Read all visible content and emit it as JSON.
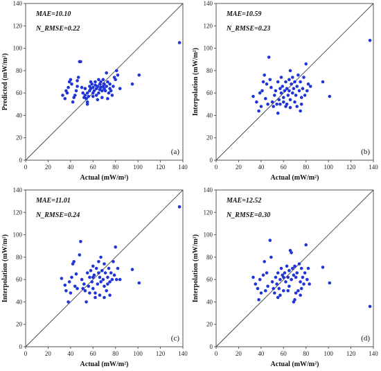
{
  "chart_data": [
    {
      "type": "scatter",
      "panel_label": "(a)",
      "xlabel": "Actual (mW/m²)",
      "ylabel": "Predicted (mW/m²)",
      "annotations": [
        "MAE=10.10",
        "N_RMSE=0.22"
      ],
      "xlim": [
        0,
        140
      ],
      "ylim": [
        0,
        140
      ],
      "xticks": [
        0,
        20,
        40,
        60,
        80,
        100,
        120,
        140
      ],
      "yticks": [
        0,
        20,
        40,
        60,
        80,
        100,
        120,
        140
      ],
      "reference_line": "y=x",
      "marker_color": "#1f35d6",
      "points": [
        [
          33,
          58
        ],
        [
          35,
          55
        ],
        [
          36,
          62
        ],
        [
          37,
          60
        ],
        [
          38,
          65
        ],
        [
          39,
          70
        ],
        [
          40,
          72
        ],
        [
          41,
          68
        ],
        [
          42,
          52
        ],
        [
          43,
          56
        ],
        [
          44,
          58
        ],
        [
          45,
          62
        ],
        [
          46,
          66
        ],
        [
          46,
          71
        ],
        [
          47,
          74
        ],
        [
          48,
          88
        ],
        [
          49,
          88
        ],
        [
          50,
          65
        ],
        [
          51,
          60
        ],
        [
          52,
          56
        ],
        [
          53,
          58
        ],
        [
          53,
          64
        ],
        [
          54,
          55
        ],
        [
          55,
          52
        ],
        [
          55,
          60
        ],
        [
          56,
          57
        ],
        [
          57,
          62
        ],
        [
          57,
          66
        ],
        [
          58,
          64
        ],
        [
          59,
          68
        ],
        [
          60,
          60
        ],
        [
          60,
          65
        ],
        [
          61,
          62
        ],
        [
          62,
          67
        ],
        [
          62,
          70
        ],
        [
          63,
          58
        ],
        [
          63,
          64
        ],
        [
          64,
          66
        ],
        [
          65,
          72
        ],
        [
          65,
          60
        ],
        [
          66,
          68
        ],
        [
          66,
          63
        ],
        [
          67,
          70
        ],
        [
          67,
          65
        ],
        [
          68,
          62
        ],
        [
          69,
          66
        ],
        [
          69,
          72
        ],
        [
          70,
          64
        ],
        [
          70,
          68
        ],
        [
          71,
          62
        ],
        [
          72,
          78
        ],
        [
          72,
          66
        ],
        [
          73,
          70
        ],
        [
          74,
          60
        ],
        [
          75,
          64
        ],
        [
          75,
          68
        ],
        [
          76,
          62
        ],
        [
          77,
          58
        ],
        [
          78,
          66
        ],
        [
          79,
          74
        ],
        [
          80,
          72
        ],
        [
          81,
          80
        ],
        [
          82,
          76
        ],
        [
          84,
          64
        ],
        [
          55,
          50
        ],
        [
          60,
          57
        ],
        [
          64,
          54
        ],
        [
          68,
          56
        ],
        [
          73,
          55
        ],
        [
          58,
          70
        ],
        [
          95,
          68
        ],
        [
          101,
          76
        ],
        [
          137,
          105
        ]
      ]
    },
    {
      "type": "scatter",
      "panel_label": "(b)",
      "xlabel": "Actual (mW/m²)",
      "ylabel": "Interpolation (mW/m²)",
      "annotations": [
        "MAE=10.59",
        "N_RMSE=0.23"
      ],
      "xlim": [
        0,
        140
      ],
      "ylim": [
        0,
        140
      ],
      "xticks": [
        0,
        20,
        40,
        60,
        80,
        100,
        120,
        140
      ],
      "yticks": [
        0,
        20,
        40,
        60,
        80,
        100,
        120,
        140
      ],
      "reference_line": "y=x",
      "marker_color": "#1f35d6",
      "points": [
        [
          33,
          57
        ],
        [
          36,
          52
        ],
        [
          38,
          44
        ],
        [
          39,
          60
        ],
        [
          40,
          48
        ],
        [
          41,
          62
        ],
        [
          42,
          70
        ],
        [
          43,
          76
        ],
        [
          44,
          55
        ],
        [
          45,
          68
        ],
        [
          46,
          50
        ],
        [
          47,
          92
        ],
        [
          48,
          72
        ],
        [
          49,
          65
        ],
        [
          50,
          52
        ],
        [
          51,
          48
        ],
        [
          52,
          58
        ],
        [
          53,
          62
        ],
        [
          54,
          50
        ],
        [
          55,
          42
        ],
        [
          55,
          70
        ],
        [
          56,
          54
        ],
        [
          57,
          64
        ],
        [
          58,
          60
        ],
        [
          58,
          74
        ],
        [
          59,
          66
        ],
        [
          60,
          56
        ],
        [
          61,
          62
        ],
        [
          62,
          48
        ],
        [
          62,
          70
        ],
        [
          63,
          64
        ],
        [
          64,
          58
        ],
        [
          65,
          72
        ],
        [
          65,
          62
        ],
        [
          66,
          80
        ],
        [
          66,
          54
        ],
        [
          67,
          68
        ],
        [
          68,
          60
        ],
        [
          68,
          74
        ],
        [
          69,
          64
        ],
        [
          70,
          52
        ],
        [
          70,
          70
        ],
        [
          71,
          58
        ],
        [
          72,
          66
        ],
        [
          73,
          76
        ],
        [
          74,
          62
        ],
        [
          75,
          44
        ],
        [
          75,
          70
        ],
        [
          76,
          56
        ],
        [
          77,
          64
        ],
        [
          78,
          74
        ],
        [
          79,
          58
        ],
        [
          80,
          86
        ],
        [
          81,
          62
        ],
        [
          82,
          68
        ],
        [
          84,
          66
        ],
        [
          57,
          50
        ],
        [
          60,
          52
        ],
        [
          63,
          50
        ],
        [
          66,
          47
        ],
        [
          72,
          48
        ],
        [
          76,
          50
        ],
        [
          95,
          70
        ],
        [
          101,
          57
        ],
        [
          137,
          107
        ]
      ]
    },
    {
      "type": "scatter",
      "panel_label": "(c)",
      "xlabel": "Actual (mW/m²)",
      "ylabel": "Interpolation (mW/m²)",
      "annotations": [
        "MAE=11.01",
        "N_RMSE=0.24"
      ],
      "xlim": [
        0,
        140
      ],
      "ylim": [
        0,
        140
      ],
      "xticks": [
        0,
        20,
        40,
        60,
        80,
        100,
        120,
        140
      ],
      "yticks": [
        0,
        20,
        40,
        60,
        80,
        100,
        120,
        140
      ],
      "reference_line": "y=x",
      "marker_color": "#1f35d6",
      "points": [
        [
          32,
          61
        ],
        [
          35,
          55
        ],
        [
          36,
          50
        ],
        [
          38,
          40
        ],
        [
          39,
          58
        ],
        [
          40,
          48
        ],
        [
          41,
          62
        ],
        [
          42,
          74
        ],
        [
          43,
          76
        ],
        [
          44,
          54
        ],
        [
          45,
          65
        ],
        [
          46,
          52
        ],
        [
          48,
          82
        ],
        [
          49,
          94
        ],
        [
          50,
          60
        ],
        [
          51,
          52
        ],
        [
          52,
          56
        ],
        [
          53,
          50
        ],
        [
          54,
          40
        ],
        [
          55,
          66
        ],
        [
          56,
          54
        ],
        [
          57,
          62
        ],
        [
          58,
          68
        ],
        [
          59,
          58
        ],
        [
          60,
          72
        ],
        [
          60,
          52
        ],
        [
          61,
          64
        ],
        [
          62,
          48
        ],
        [
          63,
          70
        ],
        [
          64,
          56
        ],
        [
          65,
          66
        ],
        [
          65,
          76
        ],
        [
          66,
          62
        ],
        [
          67,
          80
        ],
        [
          67,
          58
        ],
        [
          68,
          68
        ],
        [
          69,
          60
        ],
        [
          70,
          74
        ],
        [
          70,
          54
        ],
        [
          71,
          66
        ],
        [
          72,
          50
        ],
        [
          73,
          62
        ],
        [
          74,
          70
        ],
        [
          75,
          46
        ],
        [
          75,
          58
        ],
        [
          76,
          66
        ],
        [
          77,
          60
        ],
        [
          78,
          76
        ],
        [
          79,
          64
        ],
        [
          80,
          89
        ],
        [
          81,
          60
        ],
        [
          82,
          70
        ],
        [
          84,
          60
        ],
        [
          57,
          48
        ],
        [
          62,
          44
        ],
        [
          66,
          46
        ],
        [
          70,
          44
        ],
        [
          73,
          56
        ],
        [
          60,
          62
        ],
        [
          95,
          69
        ],
        [
          101,
          57
        ],
        [
          137,
          125
        ]
      ]
    },
    {
      "type": "scatter",
      "panel_label": "(d)",
      "xlabel": "Actual (mW/m²)",
      "ylabel": "Interpolation (mW/m²)",
      "annotations": [
        "MAE=12.52",
        "N_RMSE=0.30"
      ],
      "xlim": [
        0,
        140
      ],
      "ylim": [
        0,
        140
      ],
      "xticks": [
        0,
        20,
        40,
        60,
        80,
        100,
        120,
        140
      ],
      "yticks": [
        0,
        20,
        40,
        60,
        80,
        100,
        120,
        140
      ],
      "reference_line": "y=x",
      "marker_color": "#1f35d6",
      "points": [
        [
          33,
          62
        ],
        [
          35,
          56
        ],
        [
          37,
          52
        ],
        [
          38,
          42
        ],
        [
          39,
          60
        ],
        [
          40,
          48
        ],
        [
          42,
          64
        ],
        [
          43,
          76
        ],
        [
          44,
          50
        ],
        [
          45,
          66
        ],
        [
          46,
          54
        ],
        [
          48,
          95
        ],
        [
          49,
          80
        ],
        [
          50,
          58
        ],
        [
          51,
          52
        ],
        [
          52,
          48
        ],
        [
          53,
          62
        ],
        [
          54,
          56
        ],
        [
          55,
          44
        ],
        [
          55,
          66
        ],
        [
          56,
          52
        ],
        [
          57,
          60
        ],
        [
          58,
          70
        ],
        [
          59,
          64
        ],
        [
          60,
          50
        ],
        [
          61,
          66
        ],
        [
          62,
          58
        ],
        [
          63,
          72
        ],
        [
          64,
          62
        ],
        [
          65,
          54
        ],
        [
          65,
          68
        ],
        [
          66,
          86
        ],
        [
          67,
          84
        ],
        [
          67,
          60
        ],
        [
          68,
          70
        ],
        [
          69,
          64
        ],
        [
          69,
          40
        ],
        [
          70,
          42
        ],
        [
          70,
          72
        ],
        [
          71,
          62
        ],
        [
          72,
          66
        ],
        [
          73,
          50
        ],
        [
          74,
          74
        ],
        [
          75,
          58
        ],
        [
          75,
          46
        ],
        [
          76,
          70
        ],
        [
          77,
          62
        ],
        [
          78,
          56
        ],
        [
          79,
          66
        ],
        [
          80,
          91
        ],
        [
          81,
          60
        ],
        [
          82,
          70
        ],
        [
          83,
          56
        ],
        [
          57,
          46
        ],
        [
          60,
          62
        ],
        [
          64,
          50
        ],
        [
          71,
          48
        ],
        [
          76,
          52
        ],
        [
          95,
          71
        ],
        [
          101,
          57
        ],
        [
          137,
          36
        ]
      ]
    }
  ]
}
